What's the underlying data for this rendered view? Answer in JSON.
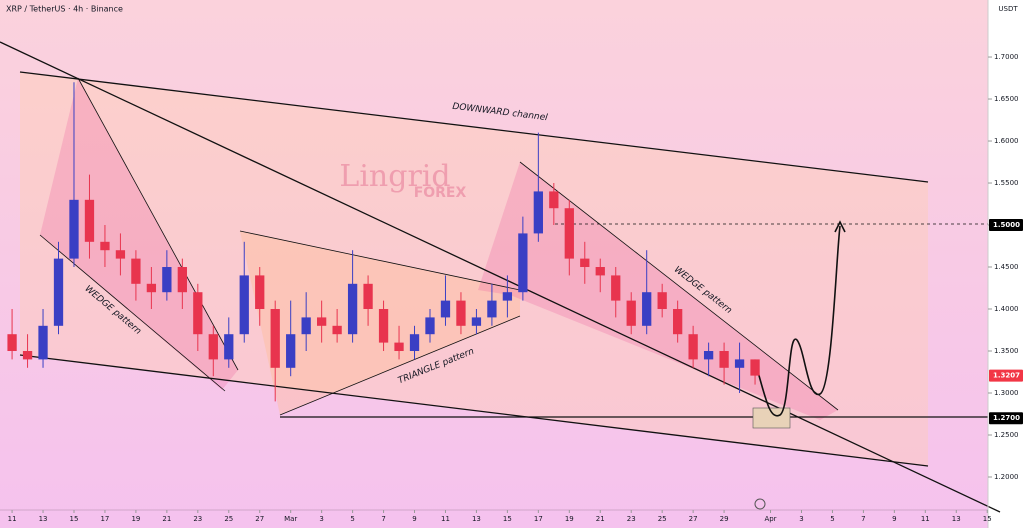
{
  "chart_data": {
    "type": "candlestick",
    "title": "XRP / TetherUS · 4h · Binance",
    "currency": "USDT",
    "watermark": "Lingrid",
    "watermark_sub": "FOREX",
    "annotations": [
      "DOWNWARD channel",
      "WEDGE pattern",
      "TRIANGLE pattern",
      "WEDGE pattern"
    ],
    "up_color": "#3a3fc4",
    "down_color": "#e8344e",
    "x": [
      0,
      1,
      2,
      3,
      4,
      5,
      6,
      7,
      8,
      9,
      10,
      11,
      12,
      13,
      14,
      15,
      16,
      17,
      18,
      19,
      20,
      21,
      22,
      23,
      24,
      25,
      26,
      27,
      28,
      29,
      30,
      31,
      32,
      33,
      34,
      35,
      36,
      37,
      38,
      39,
      40,
      41,
      42,
      43,
      44,
      45,
      46,
      47,
      48
    ],
    "open": [
      1.37,
      1.35,
      1.34,
      1.38,
      1.46,
      1.53,
      1.48,
      1.47,
      1.46,
      1.43,
      1.42,
      1.45,
      1.42,
      1.37,
      1.34,
      1.37,
      1.44,
      1.4,
      1.33,
      1.37,
      1.39,
      1.38,
      1.37,
      1.43,
      1.4,
      1.36,
      1.35,
      1.37,
      1.39,
      1.41,
      1.38,
      1.39,
      1.41,
      1.42,
      1.49,
      1.54,
      1.52,
      1.46,
      1.45,
      1.44,
      1.41,
      1.38,
      1.42,
      1.4,
      1.37,
      1.34,
      1.35,
      1.33,
      1.34
    ],
    "high": [
      1.4,
      1.37,
      1.4,
      1.48,
      1.67,
      1.56,
      1.5,
      1.49,
      1.47,
      1.45,
      1.47,
      1.46,
      1.43,
      1.38,
      1.39,
      1.48,
      1.45,
      1.41,
      1.41,
      1.42,
      1.41,
      1.4,
      1.47,
      1.44,
      1.41,
      1.38,
      1.38,
      1.4,
      1.44,
      1.42,
      1.4,
      1.43,
      1.44,
      1.51,
      1.61,
      1.55,
      1.53,
      1.48,
      1.46,
      1.45,
      1.42,
      1.47,
      1.43,
      1.41,
      1.38,
      1.36,
      1.36,
      1.36,
      1.34
    ],
    "low": [
      1.34,
      1.33,
      1.33,
      1.37,
      1.45,
      1.46,
      1.45,
      1.44,
      1.41,
      1.4,
      1.41,
      1.4,
      1.35,
      1.32,
      1.33,
      1.36,
      1.38,
      1.29,
      1.32,
      1.35,
      1.36,
      1.36,
      1.36,
      1.38,
      1.35,
      1.34,
      1.34,
      1.36,
      1.38,
      1.37,
      1.37,
      1.38,
      1.39,
      1.41,
      1.48,
      1.5,
      1.44,
      1.43,
      1.42,
      1.39,
      1.37,
      1.37,
      1.39,
      1.36,
      1.33,
      1.32,
      1.31,
      1.3,
      1.31
    ],
    "close": [
      1.35,
      1.34,
      1.38,
      1.46,
      1.53,
      1.48,
      1.47,
      1.46,
      1.43,
      1.42,
      1.45,
      1.42,
      1.37,
      1.34,
      1.37,
      1.44,
      1.4,
      1.33,
      1.37,
      1.39,
      1.38,
      1.37,
      1.43,
      1.4,
      1.36,
      1.35,
      1.37,
      1.39,
      1.41,
      1.38,
      1.39,
      1.41,
      1.42,
      1.49,
      1.54,
      1.52,
      1.46,
      1.45,
      1.44,
      1.41,
      1.38,
      1.42,
      1.4,
      1.37,
      1.34,
      1.35,
      1.33,
      1.34,
      1.3207
    ],
    "xlim": [
      -0.78,
      63.05
    ],
    "ylim": [
      1.1607,
      1.7679
    ],
    "xticks": [
      {
        "value": 0,
        "label": "11"
      },
      {
        "value": 2,
        "label": "13"
      },
      {
        "value": 4,
        "label": "15"
      },
      {
        "value": 6,
        "label": "17"
      },
      {
        "value": 8,
        "label": "19"
      },
      {
        "value": 10,
        "label": "21"
      },
      {
        "value": 12,
        "label": "23"
      },
      {
        "value": 14,
        "label": "25"
      },
      {
        "value": 16,
        "label": "27"
      },
      {
        "value": 18,
        "label": "Mar"
      },
      {
        "value": 20,
        "label": "3"
      },
      {
        "value": 22,
        "label": "5"
      },
      {
        "value": 24,
        "label": "7"
      },
      {
        "value": 26,
        "label": "9"
      },
      {
        "value": 28,
        "label": "11"
      },
      {
        "value": 30,
        "label": "13"
      },
      {
        "value": 32,
        "label": "15"
      },
      {
        "value": 34,
        "label": "17"
      },
      {
        "value": 36,
        "label": "19"
      },
      {
        "value": 38,
        "label": "21"
      },
      {
        "value": 40,
        "label": "23"
      },
      {
        "value": 42,
        "label": "25"
      },
      {
        "value": 44,
        "label": "27"
      },
      {
        "value": 46,
        "label": "29"
      },
      {
        "value": 49,
        "label": "Apr"
      },
      {
        "value": 51,
        "label": "3"
      },
      {
        "value": 53,
        "label": "5"
      },
      {
        "value": 55,
        "label": "7"
      },
      {
        "value": 57,
        "label": "9"
      },
      {
        "value": 59,
        "label": "11"
      },
      {
        "value": 61,
        "label": "13"
      },
      {
        "value": 63,
        "label": "15"
      }
    ],
    "yticks": [
      {
        "value": 1.2,
        "label": "1.2000"
      },
      {
        "value": 1.25,
        "label": "1.2500"
      },
      {
        "value": 1.3,
        "label": "1.3000"
      },
      {
        "value": 1.35,
        "label": "1.3500"
      },
      {
        "value": 1.4,
        "label": "1.4000"
      },
      {
        "value": 1.45,
        "label": "1.4500"
      },
      {
        "value": 1.5,
        "label": "1.5000"
      },
      {
        "value": 1.55,
        "label": "1.5500"
      },
      {
        "value": 1.6,
        "label": "1.6000"
      },
      {
        "value": 1.65,
        "label": "1.6500"
      },
      {
        "value": 1.7,
        "label": "1.7000"
      }
    ],
    "price_tags": [
      {
        "value": 1.5,
        "label": "1.5000",
        "color": "#000000"
      },
      {
        "value": 1.3207,
        "label": "1.3207",
        "color": "#f23645"
      },
      {
        "value": 1.27,
        "label": "1.2700",
        "color": "#000000"
      }
    ]
  }
}
